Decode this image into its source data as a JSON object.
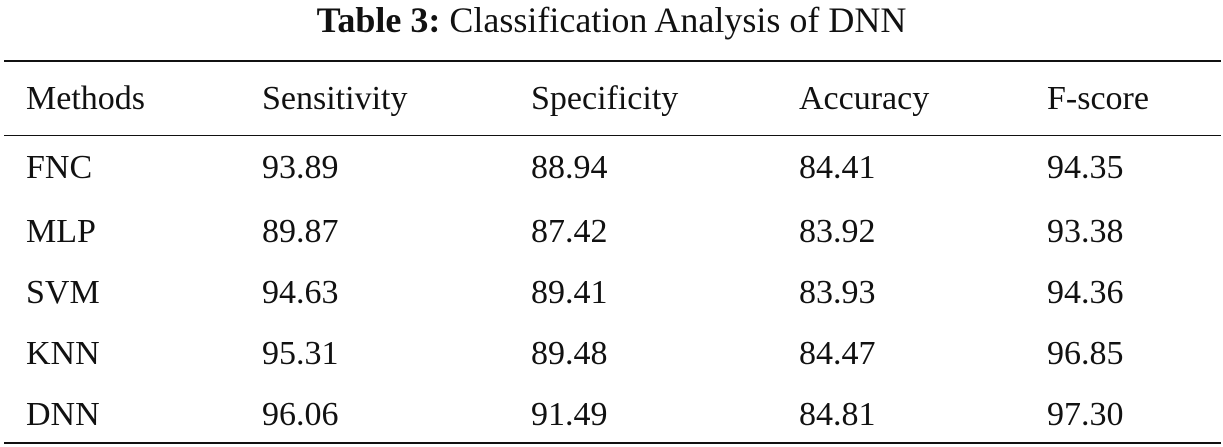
{
  "caption": {
    "label": "Table 3:",
    "text": "Classification Analysis of DNN"
  },
  "table": {
    "headers": [
      "Methods",
      "Sensitivity",
      "Specificity",
      "Accuracy",
      "F-score"
    ],
    "rows": [
      [
        "FNC",
        "93.89",
        "88.94",
        "84.41",
        "94.35"
      ],
      [
        "MLP",
        "89.87",
        "87.42",
        "83.92",
        "93.38"
      ],
      [
        "SVM",
        "94.63",
        "89.41",
        "83.93",
        "94.36"
      ],
      [
        "KNN",
        "95.31",
        "89.48",
        "84.47",
        "96.85"
      ],
      [
        "DNN",
        "96.06",
        "91.49",
        "84.81",
        "97.30"
      ]
    ]
  }
}
